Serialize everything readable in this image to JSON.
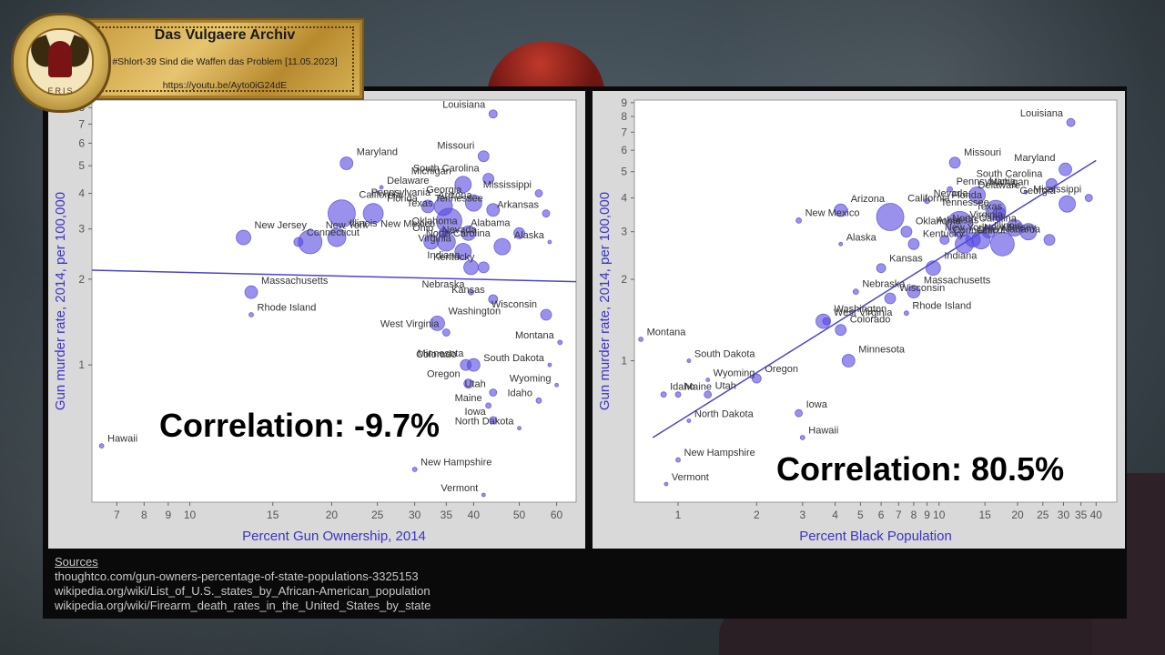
{
  "banner": {
    "title": "Das Vulgaere Archiv",
    "subtitle": "#Shlort-39 Sind die Waffen das Problem [11.05.2023]",
    "url": "https://youtu.be/Ayto0iG24dE",
    "seal_text": "ERIS"
  },
  "sources": {
    "title": "Sources",
    "lines": [
      "thoughtco.com/gun-owners-percentage-of-state-populations-3325153",
      "wikipedia.org/wiki/List_of_U.S._states_by_African-American_population",
      "wikipedia.org/wiki/Firearm_death_rates_in_the_United_States_by_state"
    ]
  },
  "colors": {
    "point": "#5548e0",
    "line": "#4a44d0",
    "axis_title": "#3a34c8"
  },
  "chart_data": [
    {
      "type": "scatter",
      "xlabel": "Percent Gun Ownership, 2014",
      "ylabel": "Gun murder rate, 2014, per 100,000",
      "annotation": "Correlation: -9.7%",
      "x_scale": "log",
      "y_scale": "log",
      "xlim": [
        6.2,
        66
      ],
      "ylim": [
        0.33,
        8.5
      ],
      "x_ticks": [
        7,
        8,
        9,
        10,
        15,
        20,
        25,
        30,
        35,
        40,
        50,
        60
      ],
      "y_ticks": [
        1,
        2,
        3,
        4,
        5,
        6,
        7,
        8
      ],
      "trendline": {
        "x": [
          6.2,
          66
        ],
        "y": [
          2.15,
          1.96
        ]
      },
      "points": [
        {
          "label": "Louisiana",
          "x": 44,
          "y": 7.6,
          "size": 4.5
        },
        {
          "label": "Missouri",
          "x": 42,
          "y": 5.4,
          "size": 6
        },
        {
          "label": "Maryland",
          "x": 21.5,
          "y": 5.1,
          "size": 7
        },
        {
          "label": "Michigan",
          "x": 38,
          "y": 4.3,
          "size": 9
        },
        {
          "label": "South Carolina",
          "x": 43,
          "y": 4.5,
          "size": 6
        },
        {
          "label": "Delaware",
          "x": 25.5,
          "y": 4.2,
          "size": 2
        },
        {
          "label": "Mississippi",
          "x": 55,
          "y": 4.0,
          "size": 4
        },
        {
          "label": "Arizona",
          "x": 32,
          "y": 3.6,
          "size": 7
        },
        {
          "label": "Pennsylvania",
          "x": 34.5,
          "y": 3.6,
          "size": 10
        },
        {
          "label": "Georgia",
          "x": 40,
          "y": 3.7,
          "size": 9
        },
        {
          "label": "California",
          "x": 21,
          "y": 3.4,
          "size": 15
        },
        {
          "label": "Florida",
          "x": 24.5,
          "y": 3.4,
          "size": 11
        },
        {
          "label": "Tennessee",
          "x": 44,
          "y": 3.5,
          "size": 7
        },
        {
          "label": "Arkansas",
          "x": 57,
          "y": 3.4,
          "size": 4
        },
        {
          "label": "Texas",
          "x": 35.5,
          "y": 3.2,
          "size": 14
        },
        {
          "label": "New Jersey",
          "x": 13,
          "y": 2.8,
          "size": 8
        },
        {
          "label": "Illinois",
          "x": 20.5,
          "y": 2.8,
          "size": 10
        },
        {
          "label": "New Mexico",
          "x": 34.5,
          "y": 2.9,
          "size": 5
        },
        {
          "label": "Oklahoma",
          "x": 39,
          "y": 2.9,
          "size": 8
        },
        {
          "label": "Alabama",
          "x": 50,
          "y": 2.9,
          "size": 6
        },
        {
          "label": "Connecticut",
          "x": 17,
          "y": 2.7,
          "size": 5
        },
        {
          "label": "New York",
          "x": 18,
          "y": 2.7,
          "size": 13
        },
        {
          "label": "Nevada",
          "x": 32.5,
          "y": 2.7,
          "size": 8
        },
        {
          "label": "North Carolina",
          "x": 46,
          "y": 2.6,
          "size": 9
        },
        {
          "label": "Alaska",
          "x": 58,
          "y": 2.7,
          "size": 2
        },
        {
          "label": "Ohio",
          "x": 35,
          "y": 2.7,
          "size": 10
        },
        {
          "label": "Virginia",
          "x": 38,
          "y": 2.5,
          "size": 9
        },
        {
          "label": "Indiana",
          "x": 39.5,
          "y": 2.2,
          "size": 8
        },
        {
          "label": "Kentucky",
          "x": 42,
          "y": 2.2,
          "size": 6
        },
        {
          "label": "Massachusetts",
          "x": 13.5,
          "y": 1.8,
          "size": 7
        },
        {
          "label": "Nebraska",
          "x": 39.5,
          "y": 1.8,
          "size": 3
        },
        {
          "label": "Kansas",
          "x": 44,
          "y": 1.7,
          "size": 5
        },
        {
          "label": "Rhode Island",
          "x": 13.5,
          "y": 1.5,
          "size": 2.5
        },
        {
          "label": "Wisconsin",
          "x": 57,
          "y": 1.5,
          "size": 6
        },
        {
          "label": "Washington",
          "x": 33.5,
          "y": 1.4,
          "size": 8
        },
        {
          "label": "West Virginia",
          "x": 35,
          "y": 1.3,
          "size": 4
        },
        {
          "label": "Montana",
          "x": 61,
          "y": 1.2,
          "size": 2.5
        },
        {
          "label": "Minnesota",
          "x": 40,
          "y": 1.0,
          "size": 7
        },
        {
          "label": "South Dakota",
          "x": 58,
          "y": 1.0,
          "size": 2
        },
        {
          "label": "Colorado",
          "x": 38.5,
          "y": 1.0,
          "size": 6
        },
        {
          "label": "Oregon",
          "x": 39,
          "y": 0.86,
          "size": 5
        },
        {
          "label": "Utah",
          "x": 44,
          "y": 0.8,
          "size": 4
        },
        {
          "label": "Wyoming",
          "x": 60,
          "y": 0.85,
          "size": 2
        },
        {
          "label": "Maine",
          "x": 43,
          "y": 0.72,
          "size": 3
        },
        {
          "label": "Idaho",
          "x": 55,
          "y": 0.75,
          "size": 3
        },
        {
          "label": "Iowa",
          "x": 44,
          "y": 0.64,
          "size": 4
        },
        {
          "label": "North Dakota",
          "x": 50,
          "y": 0.6,
          "size": 2
        },
        {
          "label": "Hawaii",
          "x": 6.5,
          "y": 0.52,
          "size": 2.5
        },
        {
          "label": "New Hampshire",
          "x": 30,
          "y": 0.43,
          "size": 2.5
        },
        {
          "label": "Vermont",
          "x": 42,
          "y": 0.35,
          "size": 2
        }
      ]
    },
    {
      "type": "scatter",
      "xlabel": "Percent Black Population",
      "ylabel": "Gun murder rate, 2014, per 100,000",
      "annotation": "Correlation: 80.5%",
      "x_scale": "log",
      "y_scale": "log",
      "xlim": [
        0.68,
        48
      ],
      "ylim": [
        0.3,
        9.2
      ],
      "x_ticks": [
        1,
        2,
        3,
        4,
        5,
        6,
        7,
        8,
        9,
        10,
        15,
        20,
        25,
        30,
        35,
        40
      ],
      "y_ticks": [
        1,
        2,
        3,
        4,
        5,
        6,
        7,
        8,
        9
      ],
      "trendline": {
        "x": [
          0.8,
          40
        ],
        "y": [
          0.52,
          5.5
        ]
      },
      "points": [
        {
          "label": "Louisiana",
          "x": 32,
          "y": 7.6,
          "size": 4.5
        },
        {
          "label": "Missouri",
          "x": 11.5,
          "y": 5.4,
          "size": 6
        },
        {
          "label": "South Carolina",
          "x": 27,
          "y": 4.5,
          "size": 6
        },
        {
          "label": "Maryland",
          "x": 30.5,
          "y": 5.1,
          "size": 7
        },
        {
          "label": "Delaware",
          "x": 21.5,
          "y": 4.2,
          "size": 2
        },
        {
          "label": "Mississippi",
          "x": 37.5,
          "y": 4.0,
          "size": 4
        },
        {
          "label": "Pennsylvania",
          "x": 11,
          "y": 4.3,
          "size": 3
        },
        {
          "label": "Michigan",
          "x": 14,
          "y": 4.1,
          "size": 9
        },
        {
          "label": "Nevada",
          "x": 9,
          "y": 3.9,
          "size": 3
        },
        {
          "label": "Arizona",
          "x": 4.2,
          "y": 3.6,
          "size": 7
        },
        {
          "label": "California",
          "x": 6.5,
          "y": 3.4,
          "size": 15
        },
        {
          "label": "Florida",
          "x": 16.5,
          "y": 3.6,
          "size": 11
        },
        {
          "label": "Tennessee",
          "x": 17,
          "y": 3.5,
          "size": 7
        },
        {
          "label": "Georgia",
          "x": 31,
          "y": 3.8,
          "size": 9
        },
        {
          "label": "Texas",
          "x": 12,
          "y": 3.2,
          "size": 14
        },
        {
          "label": "New Mexico",
          "x": 2.9,
          "y": 3.3,
          "size": 3
        },
        {
          "label": "Oklahoma",
          "x": 7.5,
          "y": 3.0,
          "size": 6
        },
        {
          "label": "New Jersey",
          "x": 13.5,
          "y": 2.8,
          "size": 8
        },
        {
          "label": "Virginia",
          "x": 19.5,
          "y": 3.1,
          "size": 9
        },
        {
          "label": "Arkansas",
          "x": 15.5,
          "y": 3.0,
          "size": 7
        },
        {
          "label": "Alabama",
          "x": 26.5,
          "y": 2.8,
          "size": 6
        },
        {
          "label": "Connecticut",
          "x": 10.5,
          "y": 2.8,
          "size": 5
        },
        {
          "label": "Illinois",
          "x": 14.5,
          "y": 2.8,
          "size": 10
        },
        {
          "label": "Ohio",
          "x": 12.5,
          "y": 2.7,
          "size": 10
        },
        {
          "label": "New York",
          "x": 17.5,
          "y": 2.7,
          "size": 13
        },
        {
          "label": "North Carolina",
          "x": 22,
          "y": 3.0,
          "size": 9
        },
        {
          "label": "Alaska",
          "x": 4.2,
          "y": 2.7,
          "size": 2
        },
        {
          "label": "Kentucky",
          "x": 8,
          "y": 2.7,
          "size": 6
        },
        {
          "label": "Indiana",
          "x": 9.5,
          "y": 2.2,
          "size": 8
        },
        {
          "label": "Kansas",
          "x": 6,
          "y": 2.2,
          "size": 5
        },
        {
          "label": "Nebraska",
          "x": 4.8,
          "y": 1.8,
          "size": 3
        },
        {
          "label": "Massachusetts",
          "x": 8,
          "y": 1.8,
          "size": 7
        },
        {
          "label": "West Virginia",
          "x": 3.7,
          "y": 1.4,
          "size": 4
        },
        {
          "label": "Wisconsin",
          "x": 6.5,
          "y": 1.7,
          "size": 6
        },
        {
          "label": "Rhode Island",
          "x": 7.5,
          "y": 1.5,
          "size": 2.5
        },
        {
          "label": "Washington",
          "x": 3.6,
          "y": 1.4,
          "size": 8
        },
        {
          "label": "Colorado",
          "x": 4.2,
          "y": 1.3,
          "size": 6
        },
        {
          "label": "Montana",
          "x": 0.72,
          "y": 1.2,
          "size": 2.5
        },
        {
          "label": "South Dakota",
          "x": 1.1,
          "y": 1.0,
          "size": 2
        },
        {
          "label": "Minnesota",
          "x": 4.5,
          "y": 1.0,
          "size": 7
        },
        {
          "label": "Wyoming",
          "x": 1.3,
          "y": 0.85,
          "size": 2
        },
        {
          "label": "Oregon",
          "x": 2,
          "y": 0.86,
          "size": 5
        },
        {
          "label": "Idaho",
          "x": 0.88,
          "y": 0.75,
          "size": 3
        },
        {
          "label": "Maine",
          "x": 1.0,
          "y": 0.75,
          "size": 3
        },
        {
          "label": "Utah",
          "x": 1.3,
          "y": 0.75,
          "size": 4
        },
        {
          "label": "Iowa",
          "x": 2.9,
          "y": 0.64,
          "size": 4
        },
        {
          "label": "North Dakota",
          "x": 1.1,
          "y": 0.6,
          "size": 2
        },
        {
          "label": "Hawaii",
          "x": 3,
          "y": 0.52,
          "size": 2.5
        },
        {
          "label": "New Hampshire",
          "x": 1.0,
          "y": 0.43,
          "size": 2.5
        },
        {
          "label": "Vermont",
          "x": 0.9,
          "y": 0.35,
          "size": 2
        }
      ]
    }
  ]
}
